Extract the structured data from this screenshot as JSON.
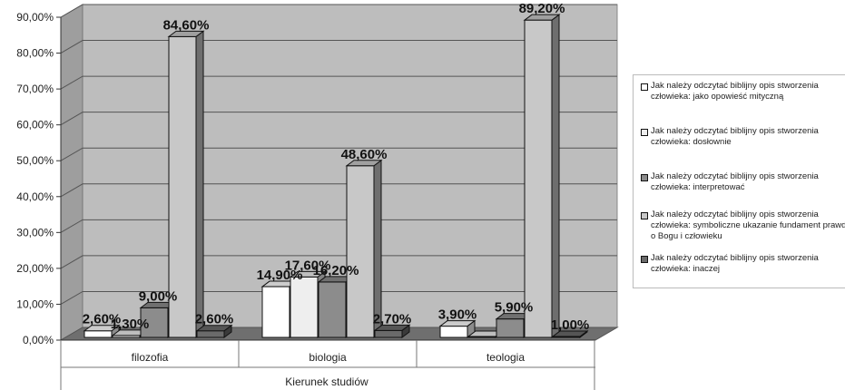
{
  "chart_data": {
    "type": "bar",
    "categories": [
      "filozofia",
      "biologia",
      "teologia"
    ],
    "xlabel": "Kierunek studiów",
    "ylim": [
      0,
      90
    ],
    "yticks": [
      "0,00%",
      "10,00%",
      "20,00%",
      "30,00%",
      "40,00%",
      "50,00%",
      "60,00%",
      "70,00%",
      "80,00%",
      "90,00%"
    ],
    "grid": true,
    "legend_position": "right",
    "series": [
      {
        "name": "Jak należy odczytać biblijny opis stworzenia człowieka: jako opowieść mityczną",
        "values": [
          2.6,
          14.9,
          3.9
        ],
        "labels": [
          "2,60%",
          "14,90%",
          "3,90%"
        ],
        "color": "#ffffff"
      },
      {
        "name": "Jak należy odczytać biblijny opis stworzenia człowieka: dosłownie",
        "values": [
          1.3,
          17.6,
          0
        ],
        "labels": [
          "1,30%",
          "17,60%",
          ""
        ],
        "color": "#eeeeee"
      },
      {
        "name": "Jak należy odczytać biblijny opis stworzenia człowieka: interpretować",
        "values": [
          9.0,
          16.2,
          5.9
        ],
        "labels": [
          "9,00%",
          "16,20%",
          "5,90%"
        ],
        "color": "#8c8c8c"
      },
      {
        "name": "Jak należy odczytać biblijny opis stworzenia człowieka: symboliczne ukazanie fundament prawd o Bogu i człowieku",
        "values": [
          84.6,
          48.6,
          89.2
        ],
        "labels": [
          "84,60%",
          "48,60%",
          "89,20%"
        ],
        "color": "#c8c8c8"
      },
      {
        "name": "Jak należy odczytać biblijny opis stworzenia człowieka: inaczej",
        "values": [
          2.6,
          2.7,
          1.0
        ],
        "labels": [
          "2,60%",
          "2,70%",
          "1,00%"
        ],
        "color": "#6a6a6a"
      }
    ]
  }
}
